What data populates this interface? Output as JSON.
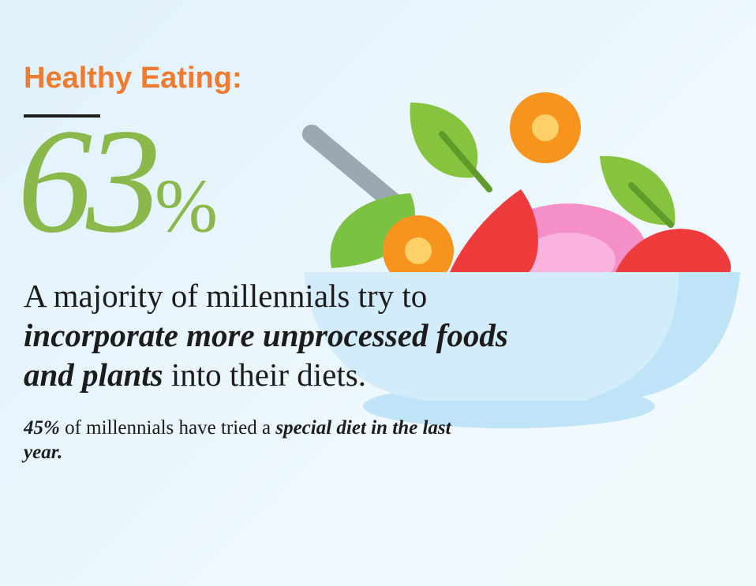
{
  "title": "Healthy Eating:",
  "stat": {
    "number": "63",
    "unit": "%"
  },
  "description": {
    "segments": [
      {
        "text": "A majority of millennials try to ",
        "emphasis": false
      },
      {
        "text": "incorporate more unprocessed foods and plants",
        "emphasis": true
      },
      {
        "text": " into their diets.",
        "emphasis": false
      }
    ]
  },
  "note": {
    "segments": [
      {
        "text": "45%",
        "emphasis": true
      },
      {
        "text": " of millennials have tried a ",
        "emphasis": false
      },
      {
        "text": "special diet in the last year.",
        "emphasis": true
      }
    ]
  }
}
